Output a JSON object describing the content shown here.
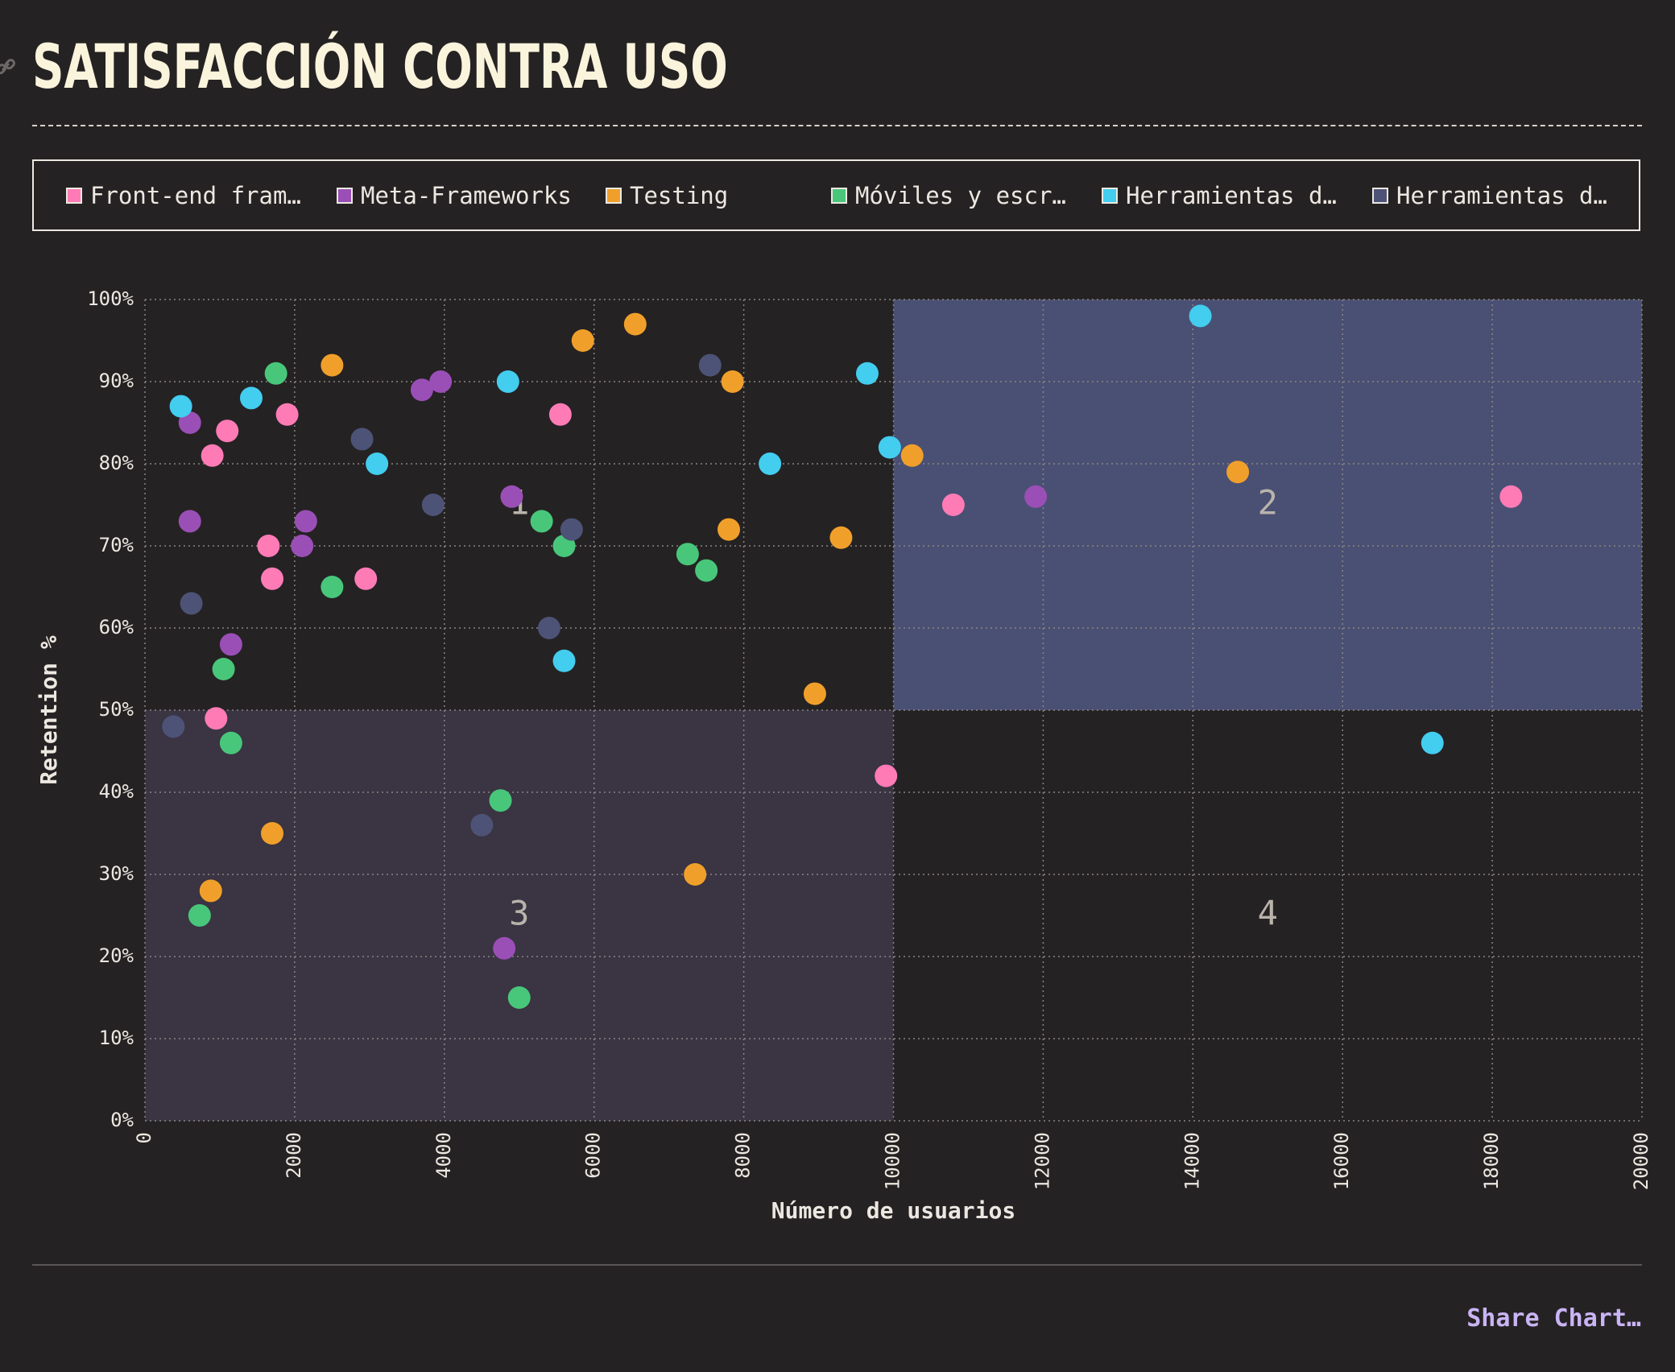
{
  "title": "SATISFACCIÓN CONTRA USO",
  "share_label": "Share Chart…",
  "legend": [
    {
      "label": "Front-end fram…",
      "color": "#ff7bb6"
    },
    {
      "label": "Meta-Frameworks",
      "color": "#9a4fb6"
    },
    {
      "label": "Testing",
      "color": "#f0a02a"
    },
    {
      "label": "Móviles y escr…",
      "color": "#48c77b"
    },
    {
      "label": "Herramientas d…",
      "color": "#43cdef"
    },
    {
      "label": "Herramientas d…",
      "color": "#4d5377"
    }
  ],
  "chart_data": {
    "type": "scatter",
    "title": "SATISFACCIÓN CONTRA USO",
    "xlabel": "Número de usuarios",
    "ylabel": "Retention %",
    "xlim": [
      0,
      20000
    ],
    "ylim": [
      0,
      100
    ],
    "x_ticks": [
      "0",
      "2000",
      "4000",
      "6000",
      "8000",
      "10000",
      "12000",
      "14000",
      "16000",
      "18000",
      "20000"
    ],
    "y_ticks": [
      "0%",
      "10%",
      "20%",
      "30%",
      "40%",
      "50%",
      "60%",
      "70%",
      "80%",
      "90%",
      "100%"
    ],
    "grid": true,
    "legend_position": "top",
    "quadrants": [
      {
        "label": "1",
        "x": [
          0,
          10000
        ],
        "y": [
          50,
          100
        ],
        "shaded": false
      },
      {
        "label": "2",
        "x": [
          10000,
          20000
        ],
        "y": [
          50,
          100
        ],
        "shaded": true,
        "color": "#4a5073"
      },
      {
        "label": "3",
        "x": [
          0,
          10000
        ],
        "y": [
          0,
          50
        ],
        "shaded": true,
        "color": "#3a3443"
      },
      {
        "label": "4",
        "x": [
          10000,
          20000
        ],
        "y": [
          0,
          50
        ],
        "shaded": false
      }
    ],
    "series": [
      {
        "name": "Front-end fram…",
        "color": "#ff7bb6",
        "points": [
          [
            900,
            81
          ],
          [
            1100,
            84
          ],
          [
            1900,
            86
          ],
          [
            1650,
            70
          ],
          [
            1700,
            66
          ],
          [
            2950,
            66
          ],
          [
            5550,
            86
          ],
          [
            950,
            49
          ],
          [
            9900,
            42
          ],
          [
            10800,
            75
          ],
          [
            18250,
            76
          ]
        ]
      },
      {
        "name": "Meta-Frameworks",
        "color": "#9a4fb6",
        "points": [
          [
            600,
            85
          ],
          [
            600,
            73
          ],
          [
            1150,
            58
          ],
          [
            2150,
            73
          ],
          [
            2100,
            70
          ],
          [
            3700,
            89
          ],
          [
            3950,
            90
          ],
          [
            4900,
            76
          ],
          [
            4800,
            21
          ],
          [
            11900,
            76
          ]
        ]
      },
      {
        "name": "Testing",
        "color": "#f0a02a",
        "points": [
          [
            2500,
            92
          ],
          [
            5850,
            95
          ],
          [
            6550,
            97
          ],
          [
            7850,
            90
          ],
          [
            7800,
            72
          ],
          [
            9300,
            71
          ],
          [
            10250,
            81
          ],
          [
            14600,
            79
          ],
          [
            8950,
            52
          ],
          [
            7350,
            30
          ],
          [
            1700,
            35
          ],
          [
            880,
            28
          ]
        ]
      },
      {
        "name": "Móviles y escr…",
        "color": "#48c77b",
        "points": [
          [
            1750,
            91
          ],
          [
            2500,
            65
          ],
          [
            1050,
            55
          ],
          [
            1150,
            46
          ],
          [
            5300,
            73
          ],
          [
            5600,
            70
          ],
          [
            7250,
            69
          ],
          [
            7500,
            67
          ],
          [
            4750,
            39
          ],
          [
            5000,
            15
          ],
          [
            730,
            25
          ]
        ]
      },
      {
        "name": "Herramientas d…",
        "color": "#43cdef",
        "points": [
          [
            480,
            87
          ],
          [
            1420,
            88
          ],
          [
            3100,
            80
          ],
          [
            4850,
            90
          ],
          [
            5600,
            56
          ],
          [
            8350,
            80
          ],
          [
            9650,
            91
          ],
          [
            9950,
            82
          ],
          [
            14100,
            98
          ],
          [
            17200,
            46
          ]
        ]
      },
      {
        "name": "Herramientas d…",
        "color": "#4d5377",
        "points": [
          [
            620,
            63
          ],
          [
            380,
            48
          ],
          [
            2900,
            83
          ],
          [
            3850,
            75
          ],
          [
            5700,
            72
          ],
          [
            5400,
            60
          ],
          [
            4500,
            36
          ],
          [
            7550,
            92
          ]
        ]
      }
    ]
  }
}
